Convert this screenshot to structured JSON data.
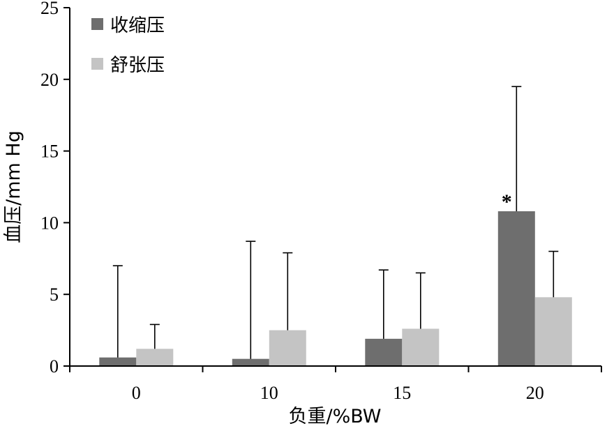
{
  "chart_data": {
    "type": "bar",
    "title": "",
    "xlabel": "负重/%BW",
    "ylabel": "血压/mm Hg",
    "ylim": [
      0,
      25
    ],
    "yticks": [
      0,
      5,
      10,
      15,
      20,
      25
    ],
    "categories": [
      "0",
      "10",
      "15",
      "20"
    ],
    "series": [
      {
        "name": "收缩压",
        "color": "#6e6e6e",
        "values": [
          0.6,
          0.5,
          1.9,
          10.8
        ],
        "error_upper": [
          7.0,
          8.7,
          6.7,
          19.5
        ]
      },
      {
        "name": "舒张压",
        "color": "#c4c4c4",
        "values": [
          1.2,
          2.5,
          2.6,
          4.8
        ],
        "error_upper": [
          2.9,
          7.9,
          6.5,
          8.0
        ]
      }
    ],
    "legend_position": "top-left",
    "grid": false,
    "annotations": [
      {
        "text": "*",
        "category": "20",
        "series": 0
      }
    ]
  }
}
